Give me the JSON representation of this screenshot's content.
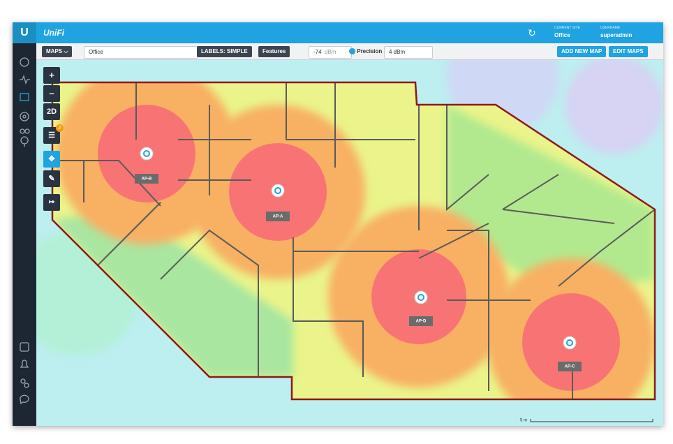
{
  "header": {
    "logo_text": "UniFi",
    "current_site_label": "CURRENT SITE",
    "current_site": "Office",
    "username_label": "USERNAME",
    "username": "superadmin"
  },
  "toolbar": {
    "maps_button": "MAPS",
    "map_select": "Office",
    "labels_button": "LABELS: SIMPLE",
    "features_button": "Features",
    "signal_value": "-74",
    "signal_unit": "dBm",
    "precision_label": "Precision",
    "precision_value": "4 dBm",
    "add_map_button": "ADD NEW MAP",
    "edit_maps_button": "EDIT MAPS"
  },
  "map_controls": {
    "view_mode": "2D",
    "badge": "2"
  },
  "access_points": [
    {
      "label": "AP-B"
    },
    {
      "label": "AP-A"
    },
    {
      "label": "AP-D"
    },
    {
      "label": "AP-C"
    }
  ],
  "scale_label": "5 m"
}
